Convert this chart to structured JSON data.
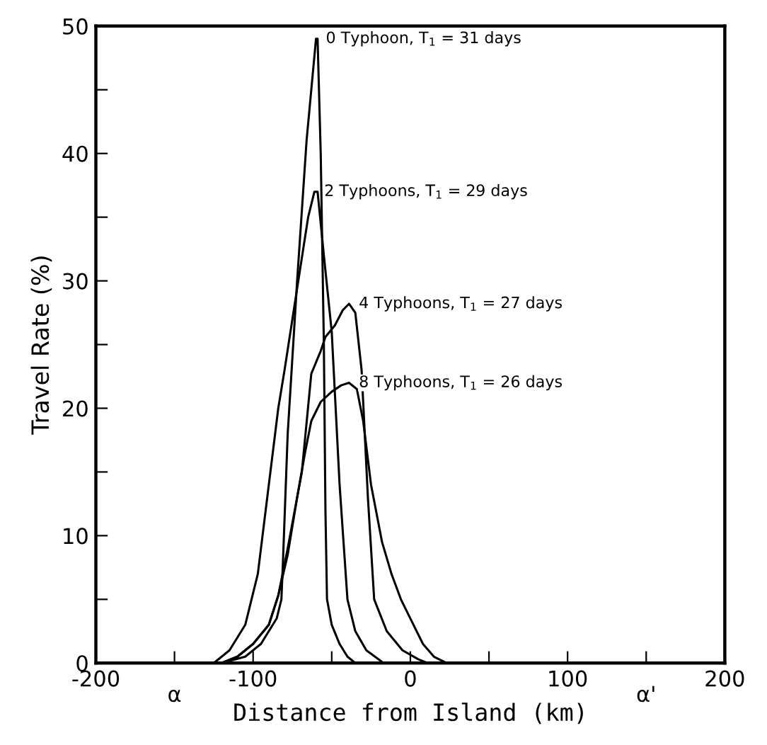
{
  "chart_data": {
    "type": "line",
    "xlabel": "Distance from Island (km)",
    "ylabel": "Travel Rate (%)",
    "xlim": [
      -200,
      200
    ],
    "ylim": [
      0,
      50
    ],
    "xticks": [
      -200,
      {
        "value": -150,
        "label": null
      },
      -100,
      {
        "value": -50,
        "label": null
      },
      0,
      {
        "value": 50,
        "label": null
      },
      100,
      {
        "value": 150,
        "label": null
      },
      200
    ],
    "yticks": [
      0,
      {
        "value": 5,
        "label": null
      },
      10,
      {
        "value": 15,
        "label": null
      },
      20,
      {
        "value": 25,
        "label": null
      },
      30,
      {
        "value": 35,
        "label": null
      },
      40,
      {
        "value": 45,
        "label": null
      },
      50
    ],
    "grid": false,
    "legend": false,
    "marker": "none",
    "line_style": "solid",
    "annotations": [
      "α",
      "α'"
    ],
    "series": [
      {
        "name": "0 Typhoon, T$_{1}$ = 31 days",
        "color": "#000000",
        "x": [
          -120,
          -105,
          -95,
          -85,
          -82,
          -81,
          -78,
          -72,
          -66,
          -60,
          -59,
          -57,
          -55,
          -54,
          -53,
          -50,
          -45,
          -40,
          -35
        ],
        "values": [
          0,
          0.5,
          1.5,
          3.5,
          5,
          8,
          18,
          30,
          41,
          49,
          49,
          40,
          25,
          12,
          5,
          3,
          1.5,
          0.5,
          0
        ]
      },
      {
        "name": "2 Typhoons, T$_{1}$ = 29 days",
        "color": "#000000",
        "x": [
          -125,
          -115,
          -105,
          -97,
          -90,
          -84,
          -80,
          -75,
          -70,
          -65,
          -61,
          -59,
          -55,
          -50,
          -45,
          -40,
          -35,
          -28,
          -17
        ],
        "values": [
          0,
          1,
          3,
          7,
          14,
          20,
          23,
          27,
          31,
          35,
          37,
          37,
          32,
          26,
          14,
          5,
          2.5,
          1,
          0
        ]
      },
      {
        "name": "4 Typhoons, T$_{1}$ = 27 days",
        "color": "#000000",
        "x": [
          -120,
          -110,
          -100,
          -90,
          -84,
          -78,
          -72,
          -69,
          -63,
          -57,
          -54,
          -48,
          -43,
          -39,
          -35,
          -31,
          -27,
          -23,
          -15,
          -5,
          5,
          11
        ],
        "values": [
          0,
          0.5,
          1.5,
          3,
          5.3,
          9,
          13,
          15,
          22.7,
          24.5,
          25.6,
          26.5,
          27.7,
          28.2,
          27.5,
          23,
          13,
          5,
          2.5,
          1,
          0.3,
          0
        ]
      },
      {
        "name": "8 Typhoons, T$_{1}$ = 26 days",
        "color": "#000000",
        "x": [
          -120,
          -110,
          -100,
          -90,
          -84,
          -78,
          -72,
          -67,
          -63,
          -57,
          -50,
          -44,
          -39,
          -34,
          -30,
          -25,
          -18,
          -12,
          -6,
          0,
          8,
          15,
          23
        ],
        "values": [
          0,
          0.5,
          1.5,
          3,
          5.3,
          8.5,
          13,
          16.5,
          19,
          20.5,
          21.3,
          21.8,
          22,
          21.5,
          19,
          14,
          9.5,
          7,
          5,
          3.5,
          1.5,
          0.5,
          0
        ]
      }
    ]
  }
}
